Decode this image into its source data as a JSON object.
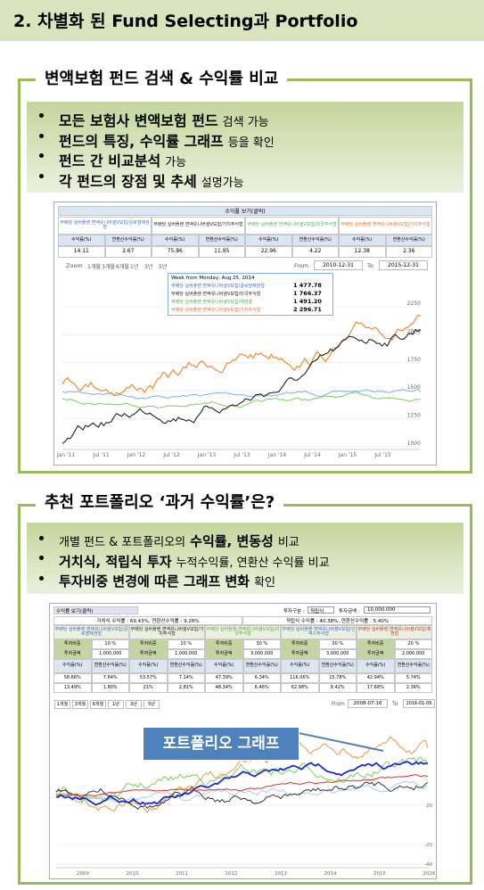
{
  "header": {
    "title": "2. 차별화 된 Fund Selecting과 Portfolio"
  },
  "section1": {
    "heading": "변액보험 펀드 검색 & 수익률 비교",
    "bullets": [
      [
        {
          "text": "모든 보험사 변액보험 펀드",
          "bold": true
        },
        {
          "text": "검색 가능",
          "bold": false
        }
      ],
      [
        {
          "text": "펀드의 특징, 수익률 그래프",
          "bold": true
        },
        {
          "text": "등을 확인",
          "bold": false
        }
      ],
      [
        {
          "text": "펀드 간 비교분석",
          "bold": true
        },
        {
          "text": "가능",
          "bold": false
        }
      ],
      [
        {
          "text": "각 펀드의 장점 및 추세",
          "bold": true
        },
        {
          "text": "설명가능",
          "bold": false
        }
      ]
    ],
    "screenshot": {
      "table_title": "수익률 보기(클릭)",
      "columns": [
        {
          "name": "무배당 실버플랜 변액유니버셜V보험/글로벌채권형",
          "color": "#3d6fc4"
        },
        {
          "name": "무배당 실버플랜 변액유니버셜V보험/가치주식형",
          "color": "#222222"
        },
        {
          "name": "무배당 실버플랜 변액유니버셜V보험/미국주식형",
          "color": "#4fae4f"
        },
        {
          "name": "무배당 실버플랜 변액유니버셜V보험/가치주식형",
          "color": "#e0702a"
        }
      ],
      "row_labels": [
        "수익률(%)",
        "연환산수익률(%)"
      ],
      "values": [
        [
          14.11,
          2.67
        ],
        [
          75.86,
          11.95
        ],
        [
          22.96,
          4.22
        ],
        [
          12.38,
          2.36
        ]
      ],
      "zoom_label": "Zoom",
      "zoom_buttons": [
        "1개월",
        "3개월",
        "6개월",
        "1년",
        "3년",
        "5년"
      ],
      "from_label": "From",
      "from": "2010-12-31",
      "to_label": "To",
      "to": "2015-12-31",
      "yticks": [
        2250,
        2000,
        1750,
        1500,
        1250,
        1000
      ],
      "xticks": [
        "Jan '11",
        "Jul '11",
        "Jan '12",
        "Jul '12",
        "Jan '13",
        "Jul '13",
        "Jan '14",
        "Jul '14",
        "Jan '15",
        "Jul '15"
      ],
      "tooltip": {
        "title": "Week from Monday, Aug 25, 2014",
        "lines": [
          {
            "name": "무배당 실버플랜 변액유니버셜V보험/글로벌채권형",
            "value": "1 477.78"
          },
          {
            "name": "무배당 실버플랜 변액유니버셜V보험/미국주식형",
            "value": "1 766.37"
          },
          {
            "name": "무배당 실버플랜 변액유니버셜V보험/채권형",
            "value": "1 491.20"
          },
          {
            "name": "무배당 실버플랜 변액유니버셜V보험/가치주식형",
            "value": "2 296.71"
          }
        ]
      }
    }
  },
  "section2": {
    "heading": "추천 포트폴리오 ‘과거 수익률’은?",
    "bullets": [
      [
        {
          "text": "개별 펀드 & 포트폴리오의",
          "bold": false
        },
        {
          "text": "수익률, 변동성",
          "bold": true
        },
        {
          "text": "비교",
          "bold": false
        }
      ],
      [
        {
          "text": "거치식, 적립식 투자",
          "bold": true
        },
        {
          "text": "누적수익률, 연환산 수익률 비교",
          "bold": false
        }
      ],
      [
        {
          "text": "투자비중 변경에 따른 그래프 변화",
          "bold": true
        },
        {
          "text": "확인",
          "bold": false
        }
      ]
    ],
    "screenshot": {
      "table_title": "수익률 보기(클릭)",
      "invest_type_label": "투자구분 :",
      "invest_type": "적립식",
      "amount_label": "투자금액 :",
      "amount": "10,000,000",
      "lump_sum": "거치식 수익률 : 69.43%, 연환산수익률 : 9.28%",
      "installment": "적립식 수익률 : 40.38%, 연환산수익률 : 5.40%",
      "funds": [
        {
          "name": "무배당 실버플랜 변액유니버셜V보험/글로벌채권형",
          "color": "#3d6fc4"
        },
        {
          "name": "무배당 실버플랜 변액유니버셜V보험/가치주식형",
          "color": "#222222"
        },
        {
          "name": "무배당 실버플랜 변액유니버셜V보험/미국주식형",
          "color": "#4fae4f"
        },
        {
          "name": "무배당 실버플랜 변액유니버셜V보험/인덱스주식형",
          "color": "#3d6fc4"
        },
        {
          "name": "무배당 실버플랜 변액유니버셜V보험/채권형",
          "color": "#d03030"
        }
      ],
      "rows": [
        [
          "투자비중",
          "10 %",
          "투자비중",
          "10 %",
          "투자비중",
          "30 %",
          "투자비중",
          "30 %",
          "투자비중",
          "20 %"
        ],
        [
          "투자금액",
          "1,000,000",
          "투자금액",
          "1,000,000",
          "투자금액",
          "3,000,000",
          "투자금액",
          "3,000,000",
          "투자금액",
          "2,000,000"
        ],
        [
          "수익률(%)",
          "연환산수익률(%)",
          "수익률(%)",
          "연환산수익률(%)",
          "수익률(%)",
          "연환산수익률(%)",
          "수익률(%)",
          "연환산수익률(%)",
          "수익률(%)",
          "연환산수익률(%)"
        ],
        [
          "58.66%",
          "7.64%",
          "53.57%",
          "7.14%",
          "47.39%",
          "6.34%",
          "116.06%",
          "15.78%",
          "42.94%",
          "5.74%"
        ],
        [
          "13.49%",
          "1.80%",
          "21%",
          "2.81%",
          "48.34%",
          "6.46%",
          "62.98%",
          "8.42%",
          "17.68%",
          "2.36%"
        ]
      ],
      "buttons": [
        "1개월",
        "3개월",
        "6개월",
        "1년",
        "3년",
        "5년"
      ],
      "from_label": "From",
      "from": "2008-07-16",
      "to_label": "To",
      "to": "2016-01-06",
      "callout": "포트폴리오 그래프",
      "yticks": [
        20,
        -20,
        -40
      ],
      "xticks": [
        "2009",
        "2010",
        "2011",
        "2012",
        "2013",
        "2014",
        "2015",
        "2016"
      ]
    }
  }
}
